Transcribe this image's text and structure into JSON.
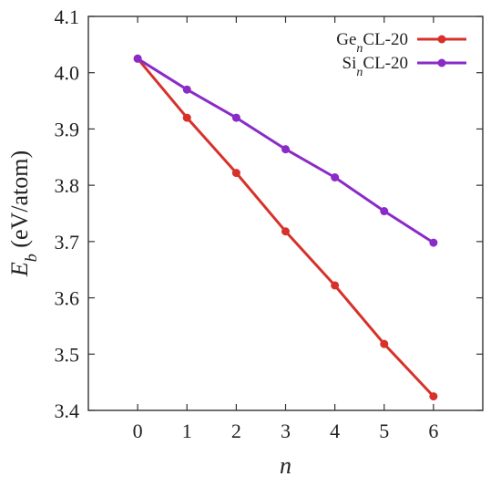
{
  "chart_data": {
    "type": "line",
    "xlabel": "n",
    "ylabel": {
      "symbol": "E",
      "subscript": "b",
      "unit": " (eV/atom)"
    },
    "xlim": [
      -1,
      7
    ],
    "ylim": [
      3.4,
      4.1
    ],
    "x_ticks": [
      0,
      1,
      2,
      3,
      4,
      5,
      6
    ],
    "x_tick_labels": [
      "0",
      "1",
      "2",
      "3",
      "4",
      "5",
      "6"
    ],
    "y_ticks": [
      3.4,
      3.5,
      3.6,
      3.7,
      3.8,
      3.9,
      4.0,
      4.1
    ],
    "y_tick_labels": [
      "3.4",
      "3.5",
      "3.6",
      "3.7",
      "3.8",
      "3.9",
      "4.0",
      "4.1"
    ],
    "grid": false,
    "legend_position": "top-right",
    "x": [
      0,
      1,
      2,
      3,
      4,
      5,
      6
    ],
    "series": [
      {
        "name": "GenCL-20",
        "name_parts": {
          "prefix": "Ge",
          "sub": "n",
          "suffix": "CL-20"
        },
        "color": "#d7312a",
        "values": [
          4.025,
          3.92,
          3.822,
          3.718,
          3.622,
          3.518,
          3.425
        ]
      },
      {
        "name": "SinCL-20",
        "name_parts": {
          "prefix": "Si",
          "sub": "n",
          "suffix": "CL-20"
        },
        "color": "#8a2bc8",
        "values": [
          4.025,
          3.97,
          3.92,
          3.864,
          3.814,
          3.754,
          3.698
        ]
      }
    ]
  }
}
